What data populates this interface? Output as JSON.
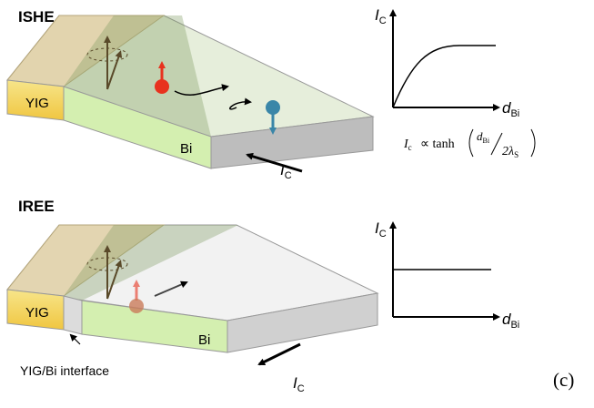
{
  "panels": [
    {
      "title": "ISHE",
      "layer_labels": {
        "yig": "YIG",
        "bi": "Bi"
      },
      "current": {
        "symbol": "I",
        "subscript": "C"
      },
      "graph": {
        "y_axis": {
          "symbol": "I",
          "subscript": "C"
        },
        "x_axis": {
          "symbol": "d",
          "subscript": "Bi"
        },
        "formula": {
          "lhs": {
            "symbol": "I",
            "subscript": "c"
          },
          "relation": "∝ tanh",
          "numerator": {
            "symbol": "d",
            "subscript": "Bi"
          },
          "denominator": {
            "symbol": "2λ",
            "subscript": "S"
          }
        }
      }
    },
    {
      "title": "IREE",
      "layer_labels": {
        "yig": "YIG",
        "bi": "Bi"
      },
      "current": {
        "symbol": "I",
        "subscript": "C"
      },
      "interface_label": "YIG/Bi interface",
      "graph": {
        "y_axis": {
          "symbol": "I",
          "subscript": "C"
        },
        "x_axis": {
          "symbol": "d",
          "subscript": "Bi"
        }
      }
    }
  ],
  "panel_label": "(c)"
}
